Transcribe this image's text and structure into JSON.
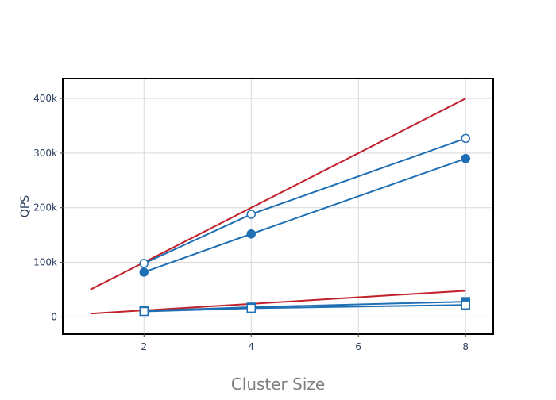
{
  "chart_data": {
    "type": "line",
    "title": "",
    "xlabel": "Cluster Size",
    "ylabel": "QPS",
    "xlim": [
      0.5,
      8.5
    ],
    "ylim": [
      -30000,
      435000
    ],
    "x_ticks": [
      2,
      4,
      6,
      8
    ],
    "x_tick_labels": [
      "2",
      "4",
      "6",
      "8"
    ],
    "y_ticks": [
      0,
      100000,
      200000,
      300000,
      400000
    ],
    "y_tick_labels": [
      "0",
      "100k",
      "200k",
      "300k",
      "400k"
    ],
    "grid": true,
    "legend": "none",
    "colors": {
      "blue": "#1f6fb4",
      "red": "#c0202a",
      "grid": "#d9d9d9",
      "frame": "#000000"
    },
    "series": [
      {
        "color": "#c0202a",
        "marker": "none",
        "x": [
          1,
          8
        ],
        "y": [
          50000,
          400000
        ]
      },
      {
        "color": "#1f6fb4",
        "marker": "circle-open",
        "x": [
          2,
          4,
          8
        ],
        "y": [
          98000,
          188000,
          327000
        ]
      },
      {
        "color": "#1f6fb4",
        "marker": "circle",
        "x": [
          2,
          4,
          8
        ],
        "y": [
          82000,
          152000,
          290000
        ]
      },
      {
        "color": "#c0202a",
        "marker": "none",
        "x": [
          1,
          8
        ],
        "y": [
          6000,
          48000
        ]
      },
      {
        "color": "#1f6fb4",
        "marker": "square",
        "x": [
          2,
          4,
          8
        ],
        "y": [
          11000,
          18000,
          28000
        ]
      },
      {
        "color": "#1f6fb4",
        "marker": "square-open",
        "x": [
          2,
          4,
          8
        ],
        "y": [
          10000,
          16000,
          22000
        ]
      }
    ]
  }
}
